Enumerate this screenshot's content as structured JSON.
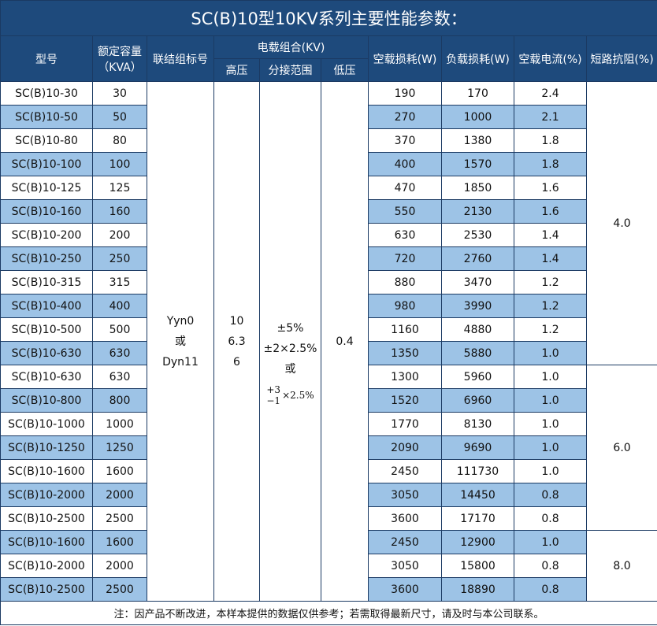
{
  "title": "SC(B)10型10KV系列主要性能参数：",
  "headers": {
    "model": "型号",
    "capacity_l1": "额定容量",
    "capacity_l2": "（KVA）",
    "connection": "联结组标号",
    "voltage_group": "电载组合(KV)",
    "hv": "高压",
    "tap": "分接范围",
    "lv": "低压",
    "no_load_loss": "空载损耗(W)",
    "load_loss": "负载损耗(W)",
    "no_load_current": "空载电流(%)",
    "impedance": "短路抗阻(%)"
  },
  "merged": {
    "connection": [
      "Yyn0",
      "或",
      "Dyn11"
    ],
    "hv": [
      "10",
      "6.3",
      "6"
    ],
    "tap": [
      "±5%",
      "±2×2.5%",
      "或"
    ],
    "tap_frac_top": "+3",
    "tap_frac_bottom": "−1",
    "tap_frac_tail": "×2.5%",
    "lv": "0.4"
  },
  "impedance_groups": [
    {
      "value": "4.0",
      "rows": 12
    },
    {
      "value": "6.0",
      "rows": 7
    },
    {
      "value": "8.0",
      "rows": 3
    }
  ],
  "rows": [
    [
      "SC(B)10-30",
      "30",
      "190",
      "170",
      "2.4"
    ],
    [
      "SC(B)10-50",
      "50",
      "270",
      "1000",
      "2.1"
    ],
    [
      "SC(B)10-80",
      "80",
      "370",
      "1380",
      "1.8"
    ],
    [
      "SC(B)10-100",
      "100",
      "400",
      "1570",
      "1.8"
    ],
    [
      "SC(B)10-125",
      "125",
      "470",
      "1850",
      "1.6"
    ],
    [
      "SC(B)10-160",
      "160",
      "550",
      "2130",
      "1.6"
    ],
    [
      "SC(B)10-200",
      "200",
      "630",
      "2530",
      "1.4"
    ],
    [
      "SC(B)10-250",
      "250",
      "720",
      "2760",
      "1.4"
    ],
    [
      "SC(B)10-315",
      "315",
      "880",
      "3470",
      "1.2"
    ],
    [
      "SC(B)10-400",
      "400",
      "980",
      "3990",
      "1.2"
    ],
    [
      "SC(B)10-500",
      "500",
      "1160",
      "4880",
      "1.2"
    ],
    [
      "SC(B)10-630",
      "630",
      "1350",
      "5880",
      "1.0"
    ],
    [
      "SC(B)10-630",
      "630",
      "1300",
      "5960",
      "1.0"
    ],
    [
      "SC(B)10-800",
      "800",
      "1520",
      "6960",
      "1.0"
    ],
    [
      "SC(B)10-1000",
      "1000",
      "1770",
      "8130",
      "1.0"
    ],
    [
      "SC(B)10-1250",
      "1250",
      "2090",
      "9690",
      "1.0"
    ],
    [
      "SC(B)10-1600",
      "1600",
      "2450",
      "111730",
      "1.0"
    ],
    [
      "SC(B)10-2000",
      "2000",
      "3050",
      "14450",
      "0.8"
    ],
    [
      "SC(B)10-2500",
      "2500",
      "3600",
      "17170",
      "0.8"
    ],
    [
      "SC(B)10-1600",
      "1600",
      "2450",
      "12900",
      "1.0"
    ],
    [
      "SC(B)10-2000",
      "2000",
      "3050",
      "15800",
      "0.8"
    ],
    [
      "SC(B)10-2500",
      "2500",
      "3600",
      "18890",
      "0.8"
    ]
  ],
  "footnote": "注：因产品不断改进，本样本提供的数据仅供参考；若需取得最新尺寸，请及时与本公司联系。",
  "colors": {
    "header": "#1e4a7c",
    "stripe": "#9dc3e6"
  }
}
